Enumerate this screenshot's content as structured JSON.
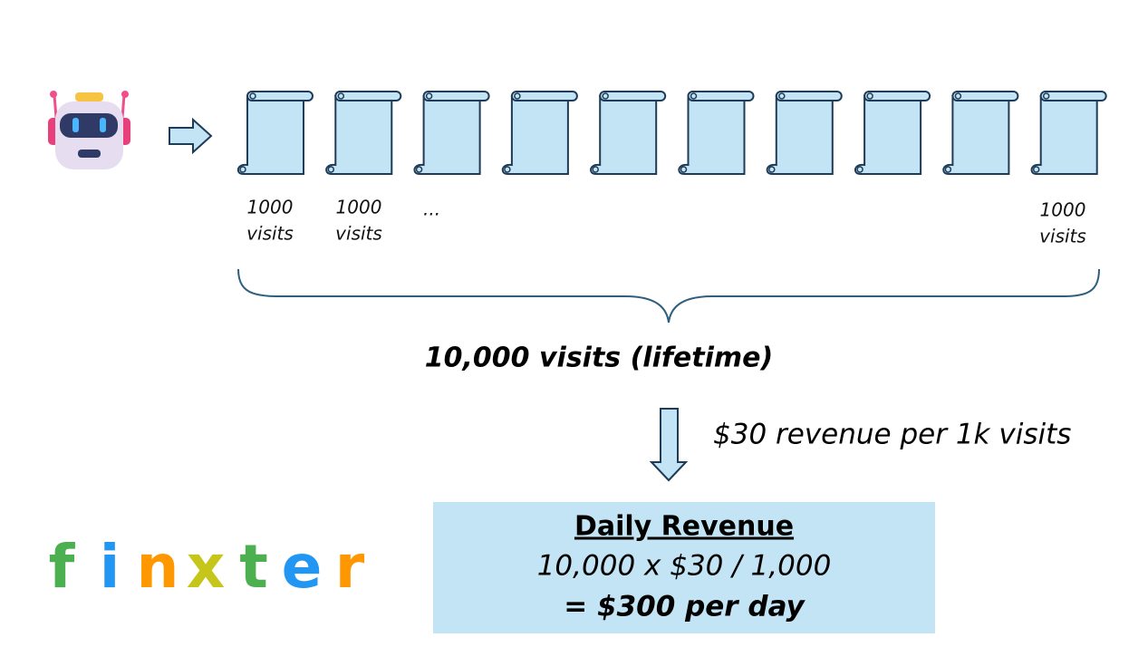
{
  "scroll_labels": [
    {
      "lines": [
        "1000",
        "visits"
      ]
    },
    {
      "lines": [
        "1000",
        "visits"
      ]
    },
    {
      "lines": [
        "..."
      ]
    },
    {
      "lines": [
        "1000",
        "visits"
      ]
    }
  ],
  "total": "10,000 visits (lifetime)",
  "rate": "$30 revenue per 1k visits",
  "result": {
    "title": "Daily Revenue",
    "formula": "10,000 x $30 / 1,000",
    "answer": "= $300 per day"
  },
  "logo": {
    "letters": [
      "f",
      "i",
      "n",
      "x",
      "t",
      "e",
      "r"
    ]
  }
}
